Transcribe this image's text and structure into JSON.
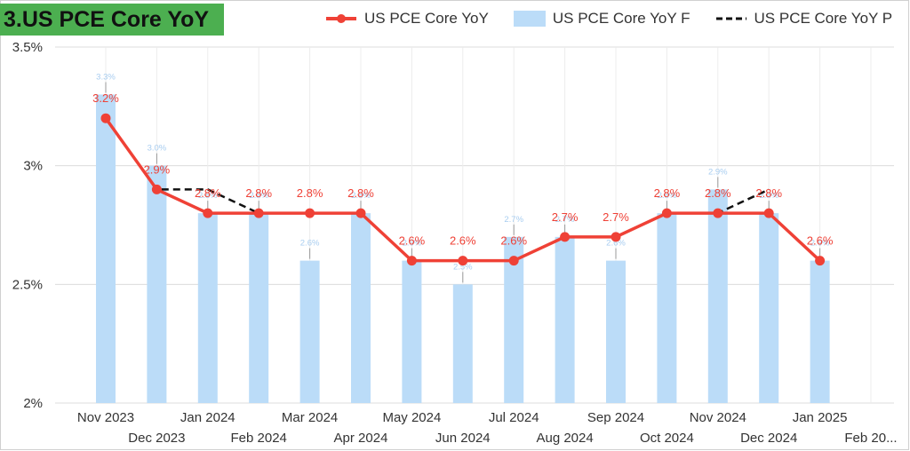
{
  "chart_data": {
    "type": "bar",
    "title": "3.US PCE Core YoY",
    "categories": [
      "Nov 2023",
      "Dec 2023",
      "Jan 2024",
      "Feb 2024",
      "Mar 2024",
      "Apr 2024",
      "May 2024",
      "Jun 2024",
      "Jul 2024",
      "Aug 2024",
      "Sep 2024",
      "Oct 2024",
      "Nov 2024",
      "Dec 2024",
      "Jan 2025",
      "Feb 20..."
    ],
    "series": [
      {
        "name": "US PCE Core YoY",
        "kind": "line",
        "color": "#ef4136",
        "values": [
          3.2,
          2.9,
          2.8,
          2.8,
          2.8,
          2.8,
          2.6,
          2.6,
          2.6,
          2.7,
          2.7,
          2.8,
          2.8,
          2.8,
          2.6,
          null
        ],
        "labels": [
          "3.2%",
          "2.9%",
          "2.8%",
          "2.8%",
          "2.8%",
          "2.8%",
          "2.6%",
          "2.6%",
          "2.6%",
          "2.7%",
          "2.7%",
          "2.8%",
          "2.8%",
          "2.8%",
          "2.6%",
          ""
        ]
      },
      {
        "name": "US PCE Core YoY F",
        "kind": "bar",
        "color": "#bbdcf8",
        "values": [
          3.3,
          3.0,
          2.8,
          2.8,
          2.6,
          2.8,
          2.6,
          2.5,
          2.7,
          2.7,
          2.6,
          2.8,
          2.9,
          2.8,
          2.6,
          null
        ],
        "labels": [
          "3.3%",
          "3.0%",
          "2.8%",
          "2.8%",
          "2.6%",
          "2.8%",
          "2.6%",
          "2.5%",
          "2.7%",
          "2.7%",
          "2.6%",
          "2.8%",
          "2.9%",
          "2.8%",
          "2.6%",
          ""
        ]
      },
      {
        "name": "US PCE Core YoY P",
        "kind": "dashed-line",
        "color": "#111111",
        "values": [
          3.2,
          2.9,
          2.9,
          2.8,
          2.8,
          2.8,
          2.6,
          2.6,
          2.6,
          2.7,
          2.7,
          2.8,
          2.8,
          2.9,
          null,
          null
        ]
      }
    ],
    "ylim": [
      2,
      3.5
    ],
    "yticks": [
      {
        "value": 2,
        "label": "2%"
      },
      {
        "value": 2.5,
        "label": "2.5%"
      },
      {
        "value": 3,
        "label": "3%"
      },
      {
        "value": 3.5,
        "label": "3.5%"
      }
    ],
    "grid": true,
    "legend_position": "top-right"
  }
}
